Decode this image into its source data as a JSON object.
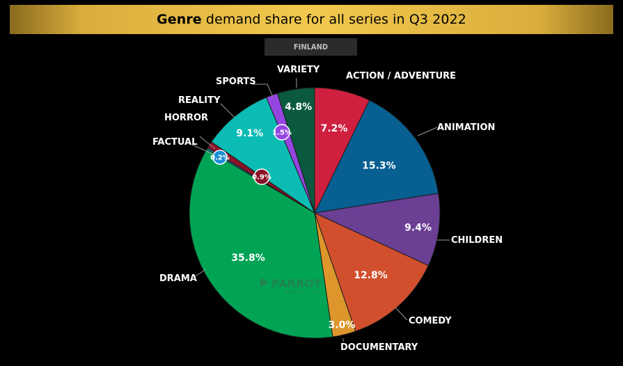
{
  "chart_data": {
    "type": "pie",
    "title_bold": "Genre",
    "title_rest": " demand share for all series in Q3 2022",
    "subtitle": "FINLAND",
    "slices": [
      {
        "label": "ACTION / ADVENTURE",
        "value": 7.2,
        "display": "7.2%",
        "color": "#d0203f"
      },
      {
        "label": "ANIMATION",
        "value": 15.3,
        "display": "15.3%",
        "color": "#085f92"
      },
      {
        "label": "CHILDREN",
        "value": 9.4,
        "display": "9.4%",
        "color": "#6a3f94"
      },
      {
        "label": "COMEDY",
        "value": 12.8,
        "display": "12.8%",
        "color": "#d24f2e"
      },
      {
        "label": "DOCUMENTARY",
        "value": 3.0,
        "display": "3.0%",
        "color": "#dd962b"
      },
      {
        "label": "DRAMA",
        "value": 35.8,
        "display": "35.8%",
        "color": "#00a454"
      },
      {
        "label": "FACTUAL",
        "value": 0.2,
        "display": "0.2%",
        "color": "#1a8fd6"
      },
      {
        "label": "HORROR",
        "value": 0.9,
        "display": "0.9%",
        "color": "#8a1228"
      },
      {
        "label": "REALITY",
        "value": 9.1,
        "display": "9.1%",
        "color": "#0bbcb4"
      },
      {
        "label": "SPORTS",
        "value": 1.5,
        "display": "1.5%",
        "color": "#9346e0"
      },
      {
        "label": "VARIETY",
        "value": 4.8,
        "display": "4.8%",
        "color": "#0b5a3e"
      }
    ]
  },
  "watermark": {
    "brand": "PARROT",
    "sub": "ANALYTICS"
  }
}
